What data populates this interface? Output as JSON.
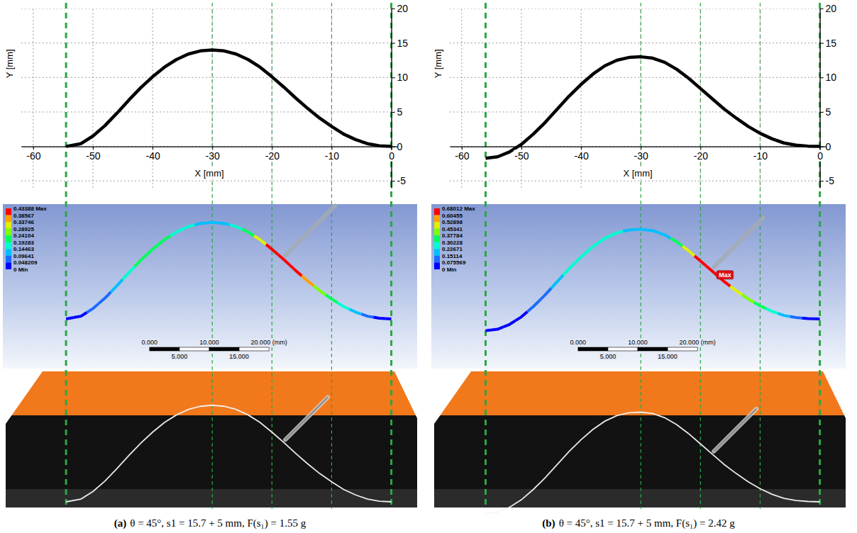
{
  "chart_data": [
    {
      "type": "line",
      "xlabel": "X [mm]",
      "ylabel": "Y [mm]",
      "x": [
        -54.5,
        -52,
        -50,
        -48,
        -46,
        -44,
        -42,
        -40,
        -38,
        -36,
        -34,
        -32,
        -30,
        -28,
        -26,
        -24,
        -22,
        -20,
        -18,
        -16,
        -14,
        -12,
        -10,
        -8,
        -6,
        -4,
        -2,
        0
      ],
      "values": [
        0,
        0.4,
        1.5,
        3,
        4.8,
        6.7,
        8.5,
        10.1,
        11.5,
        12.6,
        13.4,
        13.85,
        14,
        13.85,
        13.4,
        12.6,
        11.5,
        10.1,
        8.6,
        7.0,
        5.5,
        4.1,
        2.9,
        1.8,
        1.0,
        0.4,
        0.1,
        0
      ],
      "color": "#000000",
      "line_style": "solid",
      "xlim": [
        -62,
        1
      ],
      "xticks": [
        -60,
        -50,
        -40,
        -30,
        -20,
        -10,
        0
      ],
      "ylim": [
        -6,
        20
      ],
      "yticks": [
        -5,
        0,
        5,
        10,
        15,
        20
      ],
      "grid": true
    },
    {
      "type": "line",
      "xlabel": "X [mm]",
      "ylabel": "Y [mm]",
      "x": [
        -56,
        -54,
        -52,
        -50,
        -48,
        -46,
        -44,
        -42,
        -40,
        -38,
        -36,
        -34,
        -32,
        -30,
        -28,
        -26,
        -24,
        -22,
        -20,
        -18,
        -16,
        -14,
        -12,
        -10,
        -8,
        -6,
        -4,
        -2,
        0
      ],
      "values": [
        -1.7,
        -1.5,
        -0.8,
        0.3,
        1.8,
        3.5,
        5.4,
        7.3,
        9.0,
        10.5,
        11.7,
        12.5,
        12.9,
        13,
        12.8,
        12.2,
        11.2,
        9.9,
        8.4,
        6.9,
        5.4,
        4.1,
        2.9,
        1.9,
        1.1,
        0.5,
        0.2,
        0.05,
        0
      ],
      "color": "#000000",
      "line_style": "solid",
      "xlim": [
        -62,
        1
      ],
      "xticks": [
        -60,
        -50,
        -40,
        -30,
        -20,
        -10,
        0
      ],
      "ylim": [
        -6,
        20
      ],
      "yticks": [
        -5,
        0,
        5,
        10,
        15,
        20
      ],
      "grid": true
    }
  ],
  "panels": [
    {
      "label": "(a)",
      "caption": "θ = 45°, s1 = 15.7 + 5 mm, F(s₁) = 1.55 g",
      "guides": [
        -54.5,
        -30,
        -20,
        -10,
        0
      ],
      "fea": {
        "values": [
          0,
          0.02,
          0.05,
          0.09,
          0.13,
          0.17,
          0.2,
          0.22,
          0.21,
          0.18,
          0.15,
          0.13,
          0.12,
          0.13,
          0.17,
          0.24,
          0.33,
          0.41,
          0.43,
          0.42,
          0.36,
          0.28,
          0.2,
          0.15,
          0.1,
          0.06,
          0.03,
          0
        ],
        "colorbar": {
          "range": [
            0,
            0.43388
          ],
          "ticks": [
            {
              "value": 0.43388,
              "label": "0.43388 Max"
            },
            0.38567,
            0.33746,
            0.28925,
            0.24104,
            0.19283,
            0.14463,
            0.09641,
            0.048209,
            {
              "value": 0,
              "label": "0 Min"
            }
          ]
        },
        "scale_bar": {
          "ticks": [
            {
              "value": 0,
              "label": "0.000"
            },
            {
              "value": 5,
              "label": "5.000"
            },
            {
              "value": 10,
              "label": "10.000"
            },
            {
              "value": 15,
              "label": "15.000"
            },
            {
              "value": 20,
              "label": "20.000 (mm)"
            }
          ]
        }
      }
    },
    {
      "label": "(b)",
      "caption": "θ = 45°, s1 = 15.7 + 5 mm, F(s₁) = 2.42 g",
      "guides": [
        -56,
        -30,
        -20,
        -10,
        0
      ],
      "fea": {
        "values": [
          0,
          0.01,
          0.03,
          0.06,
          0.1,
          0.15,
          0.2,
          0.24,
          0.27,
          0.28,
          0.27,
          0.25,
          0.22,
          0.2,
          0.2,
          0.22,
          0.32,
          0.47,
          0.61,
          0.68,
          0.62,
          0.52,
          0.42,
          0.33,
          0.24,
          0.16,
          0.09,
          0.04,
          0
        ],
        "colorbar": {
          "range": [
            0,
            0.68012
          ],
          "ticks": [
            {
              "value": 0.68012,
              "label": "0.68012 Max"
            },
            0.60455,
            0.52898,
            0.45341,
            0.37784,
            0.30228,
            0.22671,
            0.15114,
            0.075569,
            {
              "value": 0,
              "label": "0 Min"
            }
          ]
        },
        "scale_bar": {
          "ticks": [
            {
              "value": 0,
              "label": "0.000"
            },
            {
              "value": 5,
              "label": "5.000"
            },
            {
              "value": 10,
              "label": "10.000"
            },
            {
              "value": 15,
              "label": "15.000"
            },
            {
              "value": 20,
              "label": "20.000 (mm)"
            }
          ]
        },
        "max_label": "Max"
      }
    }
  ]
}
